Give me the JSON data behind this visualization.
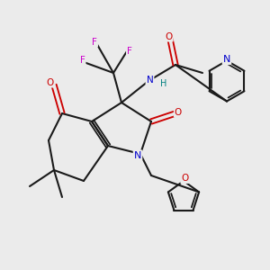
{
  "background_color": "#ebebeb",
  "figsize": [
    3.0,
    3.0
  ],
  "dpi": 100,
  "bond_color": "#1a1a1a",
  "bond_lw": 1.5,
  "atom_colors": {
    "N": "#0000cc",
    "O": "#cc0000",
    "F": "#cc00cc",
    "H": "#008080",
    "C": "#1a1a1a"
  },
  "font_size": 7.5
}
